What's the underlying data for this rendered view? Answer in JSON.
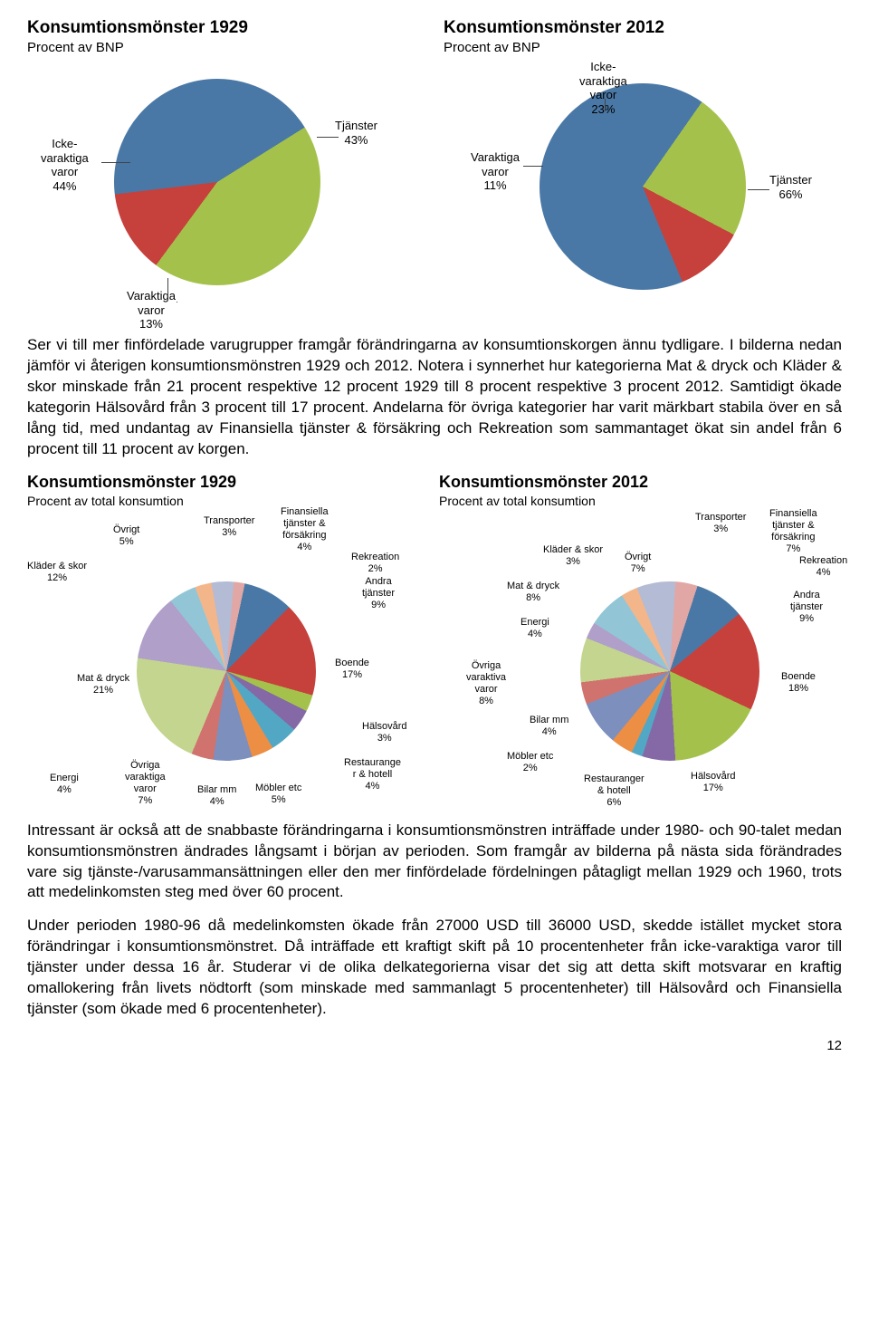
{
  "chart1929top": {
    "title": "Konsumtionsmönster 1929",
    "subtitle": "Procent av BNP",
    "slices": [
      {
        "label": "Icke-\nvaraktiga\nvaror\n44%",
        "value": 44,
        "color": "#a4c24b"
      },
      {
        "label": "Varaktiga\nvaror\n13%",
        "value": 13,
        "color": "#c6403c"
      },
      {
        "label": "Tjänster\n43%",
        "value": 43,
        "color": "#4a78a6"
      }
    ],
    "radius": 115
  },
  "chart2012top": {
    "title": "Konsumtionsmönster 2012",
    "subtitle": "Procent av BNP",
    "slices": [
      {
        "label": "Icke-\nvaraktiga\nvaror\n23%",
        "value": 23,
        "color": "#a4c24b"
      },
      {
        "label": "Varaktiga\nvaror\n11%",
        "value": 11,
        "color": "#c6403c"
      },
      {
        "label": "Tjänster\n66%",
        "value": 66,
        "color": "#4a78a6"
      }
    ],
    "radius": 115
  },
  "paragraph1": "Ser vi till mer finfördelade varugrupper framgår förändringarna av konsumtionskorgen ännu tydligare. I bilderna nedan jämför vi återigen konsumtionsmönstren 1929 och 2012. Notera i synnerhet hur kategorierna Mat & dryck och Kläder & skor minskade från 21 procent respektive 12 procent 1929 till 8 procent respektive 3 procent 2012. Samtidigt ökade kategorin Hälsovård från 3 procent till 17 procent. Andelarna för övriga kategorier har varit märkbart stabila över en så lång tid, med undantag av Finansiella tjänster & försäkring och Rekreation som sammantaget ökat sin andel från 6 procent till 11 procent av korgen.",
  "chart1929bottom": {
    "title": "Konsumtionsmönster 1929",
    "subtitle": "Procent av total konsumtion",
    "slices": [
      {
        "label": "Andra\ntjänster\n9%",
        "value": 9,
        "color": "#4a78a6"
      },
      {
        "label": "Boende\n17%",
        "value": 17,
        "color": "#c6403c"
      },
      {
        "label": "Hälsovård\n3%",
        "value": 3,
        "color": "#a4c24b"
      },
      {
        "label": "Restaurange\nr & hotell\n4%",
        "value": 4,
        "color": "#8569a7"
      },
      {
        "label": "Möbler etc\n5%",
        "value": 5,
        "color": "#52a8c4"
      },
      {
        "label": "Bilar mm\n4%",
        "value": 4,
        "color": "#ed8e45"
      },
      {
        "label": "Övriga\nvaraktiga\nvaror\n7%",
        "value": 7,
        "color": "#7c8fbd"
      },
      {
        "label": "Energi\n4%",
        "value": 4,
        "color": "#d0736f"
      },
      {
        "label": "Mat & dryck\n21%",
        "value": 21,
        "color": "#c3d58f"
      },
      {
        "label": "Kläder & skor\n12%",
        "value": 12,
        "color": "#af9fc9"
      },
      {
        "label": "Övrigt\n5%",
        "value": 5,
        "color": "#92c6d6"
      },
      {
        "label": "Transporter\n3%",
        "value": 3,
        "color": "#f3b68b"
      },
      {
        "label": "Finansiella\ntjänster &\nförsäkring\n4%",
        "value": 4,
        "color": "#b3bbd5"
      },
      {
        "label": "Rekreation\n2%",
        "value": 2,
        "color": "#e0a7a5"
      }
    ],
    "radius": 100
  },
  "chart2012bottom": {
    "title": "Konsumtionsmönster 2012",
    "subtitle": "Procent av total konsumtion",
    "slices": [
      {
        "label": "Andra\ntjänster\n9%",
        "value": 9,
        "color": "#4a78a6"
      },
      {
        "label": "Boende\n18%",
        "value": 18,
        "color": "#c6403c"
      },
      {
        "label": "Hälsovård\n17%",
        "value": 17,
        "color": "#a4c24b"
      },
      {
        "label": "Restauranger\n& hotell\n6%",
        "value": 6,
        "color": "#8569a7"
      },
      {
        "label": "Möbler etc\n2%",
        "value": 2,
        "color": "#52a8c4"
      },
      {
        "label": "Bilar mm\n4%",
        "value": 4,
        "color": "#ed8e45"
      },
      {
        "label": "Övriga\nvaraktiva\nvaror\n8%",
        "value": 8,
        "color": "#7c8fbd"
      },
      {
        "label": "Energi\n4%",
        "value": 4,
        "color": "#d0736f"
      },
      {
        "label": "Mat & dryck\n8%",
        "value": 8,
        "color": "#c3d58f"
      },
      {
        "label": "Kläder & skor\n3%",
        "value": 3,
        "color": "#af9fc9"
      },
      {
        "label": "Övrigt\n7%",
        "value": 7,
        "color": "#92c6d6"
      },
      {
        "label": "Transporter\n3%",
        "value": 3,
        "color": "#f3b68b"
      },
      {
        "label": "Finansiella\ntjänster &\nförsäkring\n7%",
        "value": 7,
        "color": "#b3bbd5"
      },
      {
        "label": "Rekreation\n4%",
        "value": 4,
        "color": "#e0a7a5"
      }
    ],
    "radius": 100
  },
  "paragraph2": "Intressant är också att de snabbaste förändringarna i konsumtionsmönstren inträffade under 1980- och 90-talet medan konsumtionsmönstren ändrades långsamt i början av perioden. Som framgår av bilderna på nästa sida förändrades vare sig tjänste-/varusammansättningen eller den mer finfördelade fördelningen påtagligt mellan 1929 och 1960, trots att medelinkomsten steg med över 60 procent.",
  "paragraph3": "Under perioden 1980-96 då medelinkomsten ökade från 27000 USD till 36000 USD, skedde istället mycket stora förändringar i konsumtionsmönstret. Då inträffade ett kraftigt skift på 10 procentenheter från icke-varaktiga varor till tjänster under dessa 16 år. Studerar vi de olika delkategorierna visar det sig att detta skift motsvarar en kraftig omallokering från livets nödtorft (som minskade med sammanlagt 5 procentenheter) till Hälsovård och Finansiella tjänster (som ökade med 6 procentenheter).",
  "pageNumber": "12"
}
